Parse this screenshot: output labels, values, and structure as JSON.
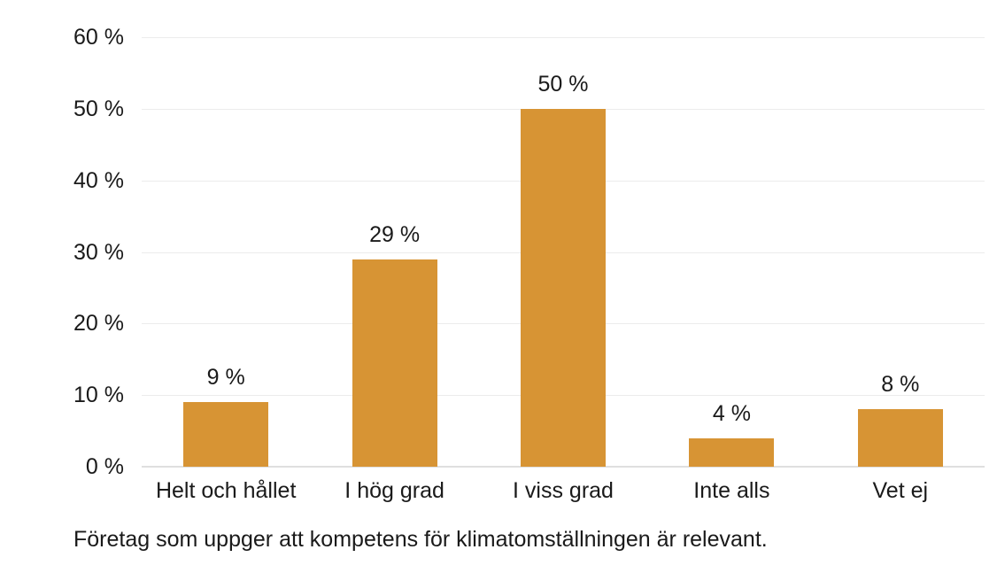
{
  "chart_data": {
    "type": "bar",
    "categories": [
      "Helt och hållet",
      "I hög grad",
      "I viss grad",
      "Inte alls",
      "Vet ej"
    ],
    "values": [
      9,
      29,
      50,
      4,
      8
    ],
    "value_labels": [
      "9 %",
      "29 %",
      "50 %",
      "4 %",
      "8 %"
    ],
    "y_ticks": [
      0,
      10,
      20,
      30,
      40,
      50,
      60
    ],
    "y_tick_labels": [
      "0 %",
      "10 %",
      "20 %",
      "30 %",
      "40 %",
      "50 %",
      "60 %"
    ],
    "ylim": [
      0,
      60
    ],
    "grid": true,
    "legend": "none",
    "title": "",
    "xlabel": "",
    "ylabel": "",
    "caption": "Företag som uppger att kompetens för klimatomställningen är relevant."
  },
  "colors": {
    "bar": "#D79434",
    "gridline": "#ececec",
    "baseline": "#dfdfdf",
    "text": "#1a1a1a",
    "background": "#ffffff"
  }
}
